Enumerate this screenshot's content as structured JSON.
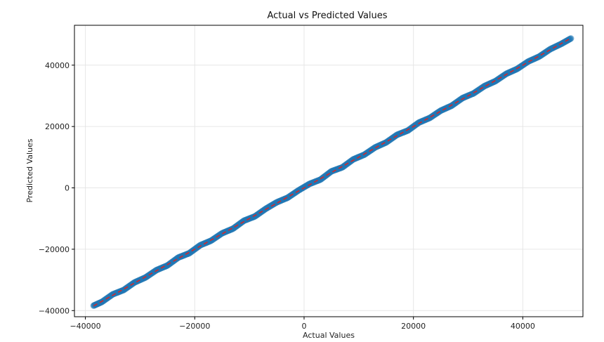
{
  "chart_data": {
    "type": "scatter",
    "title": "Actual vs Predicted Values",
    "xlabel": "Actual Values",
    "ylabel": "Predicted Values",
    "xlim": [
      -42000,
      51000
    ],
    "ylim": [
      -42000,
      53000
    ],
    "xticks": [
      -40000,
      -20000,
      0,
      20000,
      40000
    ],
    "yticks": [
      -40000,
      -20000,
      0,
      20000,
      40000
    ],
    "xtick_labels": [
      "−40000",
      "−20000",
      "0",
      "20000",
      "40000"
    ],
    "ytick_labels": [
      "−40000",
      "−20000",
      "0",
      "20000",
      "40000"
    ],
    "grid": true,
    "series": [
      {
        "kind": "scatter",
        "color": "#1f77b4",
        "points": [
          [
            -38500,
            -38400
          ],
          [
            -37000,
            -37200
          ],
          [
            -35000,
            -34700
          ],
          [
            -33000,
            -33300
          ],
          [
            -31000,
            -30800
          ],
          [
            -29000,
            -29200
          ],
          [
            -27000,
            -26800
          ],
          [
            -25000,
            -25300
          ],
          [
            -23000,
            -22700
          ],
          [
            -21000,
            -21300
          ],
          [
            -19000,
            -18700
          ],
          [
            -17000,
            -17200
          ],
          [
            -15000,
            -14800
          ],
          [
            -13000,
            -13300
          ],
          [
            -11000,
            -10700
          ],
          [
            -9000,
            -9300
          ],
          [
            -7000,
            -6800
          ],
          [
            -5000,
            -4700
          ],
          [
            -3000,
            -3200
          ],
          [
            -1000,
            -800
          ],
          [
            1000,
            1300
          ],
          [
            3000,
            2700
          ],
          [
            5000,
            5400
          ],
          [
            7000,
            6700
          ],
          [
            9000,
            9300
          ],
          [
            11000,
            10800
          ],
          [
            13000,
            13200
          ],
          [
            15000,
            14800
          ],
          [
            17000,
            17300
          ],
          [
            19000,
            18700
          ],
          [
            21000,
            21300
          ],
          [
            23000,
            22800
          ],
          [
            25000,
            25200
          ],
          [
            27000,
            26800
          ],
          [
            29000,
            29300
          ],
          [
            31000,
            30800
          ],
          [
            33000,
            33200
          ],
          [
            35000,
            34800
          ],
          [
            37000,
            37200
          ],
          [
            39000,
            38800
          ],
          [
            41000,
            41200
          ],
          [
            43000,
            42800
          ],
          [
            45000,
            45200
          ],
          [
            47000,
            46900
          ],
          [
            48800,
            48700
          ]
        ]
      },
      {
        "kind": "reference-line",
        "color": "#d62728",
        "style": "dashed",
        "points": [
          [
            -38500,
            -38500
          ],
          [
            48800,
            48800
          ]
        ]
      }
    ]
  }
}
